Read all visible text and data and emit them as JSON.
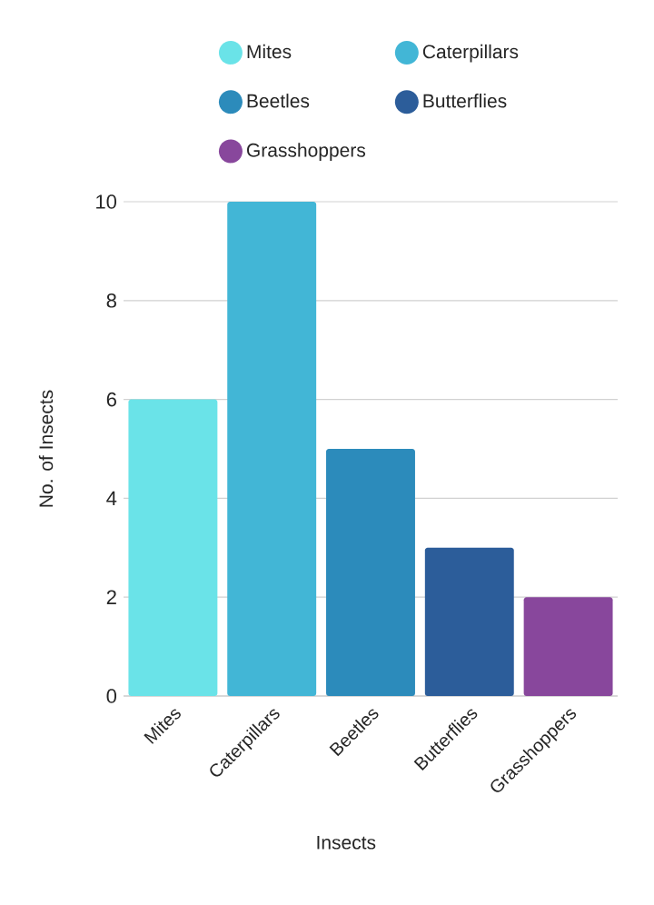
{
  "chart_data": {
    "type": "bar",
    "xlabel": "Insects",
    "ylabel": "No. of Insects",
    "categories": [
      "Mites",
      "Caterpillars",
      "Beetles",
      "Butterflies",
      "Grasshoppers"
    ],
    "series": [
      {
        "name": "Mites",
        "color": "#6ae3e8",
        "values": [
          6,
          null,
          null,
          null,
          null
        ]
      },
      {
        "name": "Caterpillars",
        "color": "#42b6d6",
        "values": [
          null,
          10,
          null,
          null,
          null
        ]
      },
      {
        "name": "Beetles",
        "color": "#2c8bbb",
        "values": [
          null,
          null,
          5,
          null,
          null
        ]
      },
      {
        "name": "Butterflies",
        "color": "#2c5d9a",
        "values": [
          null,
          null,
          null,
          3,
          null
        ]
      },
      {
        "name": "Grasshoppers",
        "color": "#88479c",
        "values": [
          null,
          null,
          null,
          null,
          2
        ]
      }
    ],
    "ylim": [
      0,
      10
    ],
    "yticks": [
      0,
      2,
      4,
      6,
      8,
      10
    ],
    "grid": "y",
    "legend": "top"
  }
}
